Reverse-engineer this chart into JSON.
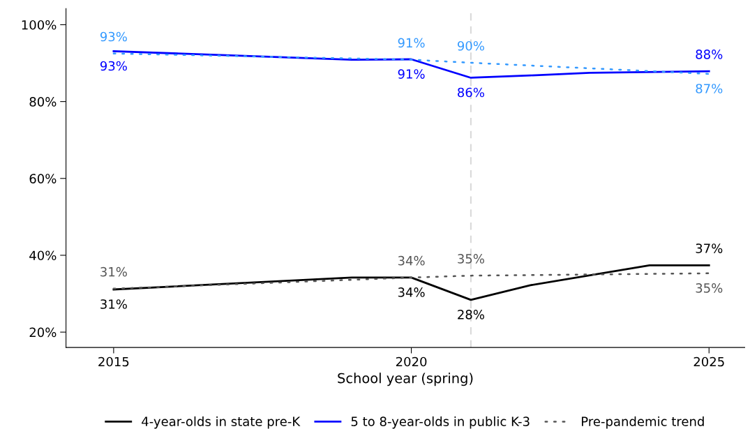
{
  "chart_data": {
    "type": "line",
    "xlabel": "School year (spring)",
    "xlim": [
      2014.2,
      2025.6
    ],
    "xticks": [
      2015,
      2020,
      2025
    ],
    "ylim": [
      16,
      104.2
    ],
    "yticks": [
      {
        "value": 20,
        "label": "20%"
      },
      {
        "value": 40,
        "label": "40%"
      },
      {
        "value": 60,
        "label": "60%"
      },
      {
        "value": 80,
        "label": "80%"
      },
      {
        "value": 100,
        "label": "100%"
      }
    ],
    "grid": false,
    "legend": "bottom",
    "marker": "none",
    "ref_lines": [
      {
        "axis": "x",
        "value": 2021,
        "color": "#d9d9d9",
        "line_style": "dashed"
      }
    ],
    "series": [
      {
        "name": "4-year-olds in state pre-K",
        "color": "#000000",
        "line_style": "solid",
        "x": [
          2015,
          2019,
          2020,
          2021,
          2022,
          2024,
          2025
        ],
        "values": [
          31.1,
          34.2,
          34.2,
          28.4,
          32.2,
          37.4,
          37.4
        ],
        "value_labels": [
          "31%",
          null,
          "34%",
          "28%",
          null,
          null,
          "37%"
        ]
      },
      {
        "name": "5 to 8-year-olds in public K-3",
        "color": "#0000ff",
        "line_style": "solid",
        "x": [
          2015,
          2019,
          2020,
          2021,
          2022,
          2023,
          2025
        ],
        "values": [
          93.1,
          90.9,
          91.0,
          86.2,
          86.8,
          87.5,
          87.9
        ],
        "value_labels": [
          "93%",
          null,
          "91%",
          "86%",
          null,
          null,
          "88%"
        ]
      },
      {
        "name": "Pre-pandemic trend",
        "color": "#555555",
        "line_style": "dotted",
        "x": [
          2015,
          2020,
          2021,
          2025
        ],
        "values": [
          31.3,
          34.2,
          34.7,
          35.3
        ],
        "value_labels": [
          "31%",
          "34%",
          "35%",
          "35%"
        ]
      },
      {
        "color": "#3399ff",
        "line_style": "dotted",
        "x": [
          2015,
          2020,
          2021,
          2025
        ],
        "values": [
          92.5,
          90.9,
          90.1,
          87.2
        ],
        "value_labels": [
          "93%",
          "91%",
          "90%",
          "87%"
        ]
      }
    ]
  }
}
